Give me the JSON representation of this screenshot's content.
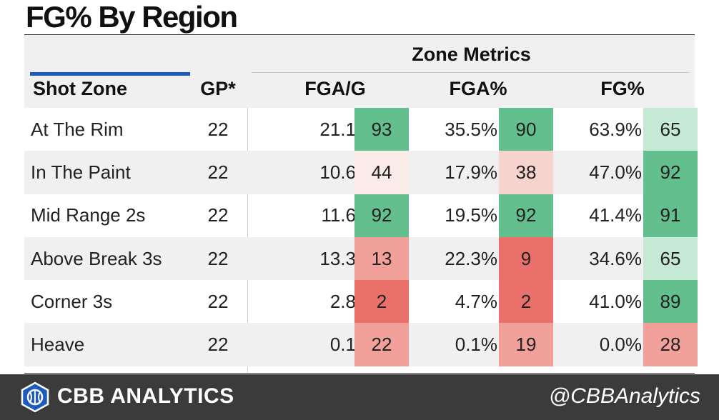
{
  "title": "FG% By Region",
  "header": {
    "group_label": "Zone Metrics",
    "col_zone": "Shot Zone",
    "col_gp": "GP*",
    "col_fga_g": "FGA/G",
    "col_fga_pct": "FGA%",
    "col_fg_pct": "FG%"
  },
  "colors": {
    "green_strong": "#63bf8e",
    "green_light": "#c6e9d6",
    "pink_pale": "#fbecea",
    "pink_light": "#f6d3cf",
    "red_mid": "#f2a09a",
    "red_strong": "#e9716a"
  },
  "chart_data": {
    "type": "table",
    "columns": [
      "Shot Zone",
      "GP*",
      "FGA/G",
      "FGA%",
      "FG%"
    ],
    "rows": [
      {
        "zone": "At The Rim",
        "gp": "22",
        "fga_g": "21.1",
        "fga_g_pct": 93,
        "fga_pct": "35.5%",
        "fga_pct_pct": 90,
        "fg_pct": "63.9%",
        "fg_pct_pct": 65
      },
      {
        "zone": "In The Paint",
        "gp": "22",
        "fga_g": "10.6",
        "fga_g_pct": 44,
        "fga_pct": "17.9%",
        "fga_pct_pct": 38,
        "fg_pct": "47.0%",
        "fg_pct_pct": 92
      },
      {
        "zone": "Mid Range 2s",
        "gp": "22",
        "fga_g": "11.6",
        "fga_g_pct": 92,
        "fga_pct": "19.5%",
        "fga_pct_pct": 92,
        "fg_pct": "41.4%",
        "fg_pct_pct": 91
      },
      {
        "zone": "Above Break 3s",
        "gp": "22",
        "fga_g": "13.3",
        "fga_g_pct": 13,
        "fga_pct": "22.3%",
        "fga_pct_pct": 9,
        "fg_pct": "34.6%",
        "fg_pct_pct": 65
      },
      {
        "zone": "Corner 3s",
        "gp": "22",
        "fga_g": "2.8",
        "fga_g_pct": 2,
        "fga_pct": "4.7%",
        "fga_pct_pct": 2,
        "fg_pct": "41.0%",
        "fg_pct_pct": 89
      },
      {
        "zone": "Heave",
        "gp": "22",
        "fga_g": "0.1",
        "fga_g_pct": 22,
        "fga_pct": "0.1%",
        "fga_pct_pct": 19,
        "fg_pct": "0.0%",
        "fg_pct_pct": 28
      }
    ]
  },
  "footer": {
    "logo_icon": "basketball-shield-icon",
    "brand": "CBB ANALYTICS",
    "handle": "@CBBAnalytics"
  }
}
